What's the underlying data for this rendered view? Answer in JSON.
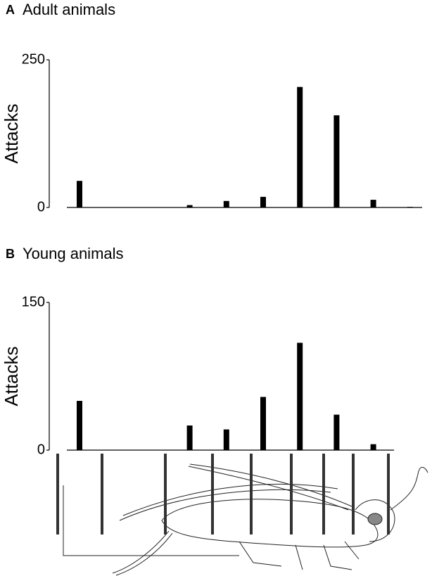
{
  "chart_data": [
    {
      "type": "bar",
      "panel": "A",
      "title": "Adult animals",
      "ylabel": "Attacks",
      "categories": [
        null,
        null,
        null,
        null,
        null,
        null,
        null,
        null,
        null,
        null
      ],
      "values": [
        45,
        null,
        null,
        4,
        11,
        18,
        204,
        156,
        13,
        1
      ],
      "color": "#000000",
      "ylim": [
        0,
        250
      ],
      "yticks": [
        0,
        250
      ]
    },
    {
      "type": "bar",
      "panel": "B",
      "title": "Young animals",
      "ylabel": "Attacks",
      "categories": [
        null,
        null,
        null,
        null,
        null,
        null,
        null,
        null,
        null,
        null
      ],
      "values": [
        50,
        null,
        null,
        25,
        21,
        54,
        109,
        36,
        6,
        null
      ],
      "color": "#000000",
      "ylim": [
        0,
        150
      ],
      "yticks": [
        0,
        150
      ]
    }
  ]
}
